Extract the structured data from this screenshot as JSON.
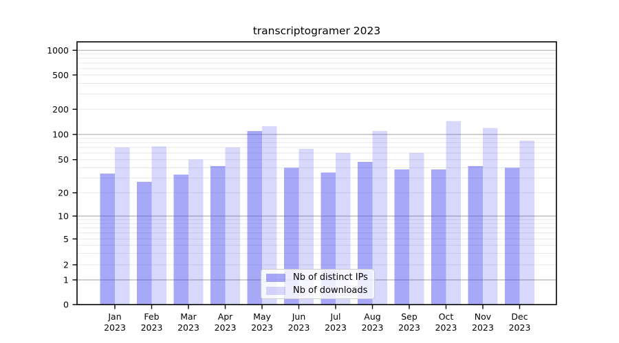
{
  "title": "transcriptogramer 2023",
  "chart_data": {
    "type": "bar",
    "title": "transcriptogramer 2023",
    "categories": [
      "Jan 2023",
      "Feb 2023",
      "Mar 2023",
      "Apr 2023",
      "May 2023",
      "Jun 2023",
      "Jul 2023",
      "Aug 2023",
      "Sep 2023",
      "Oct 2023",
      "Nov 2023",
      "Dec 2023"
    ],
    "series": [
      {
        "name": "Nb of distinct IPs",
        "color": "rgba(62,62,240,0.45)",
        "values": [
          34,
          27,
          33,
          42,
          110,
          40,
          35,
          47,
          38,
          38,
          42,
          40
        ]
      },
      {
        "name": "Nb of downloads",
        "color": "rgba(62,62,240,0.20)",
        "values": [
          70,
          72,
          50,
          70,
          125,
          67,
          60,
          110,
          60,
          145,
          120,
          84
        ]
      }
    ],
    "xlabel": "",
    "ylabel": "",
    "yscale": "symlog",
    "ylim": [
      0,
      1300
    ],
    "yticks": [
      0,
      1,
      2,
      5,
      10,
      20,
      50,
      100,
      200,
      500,
      1000
    ],
    "y_tick_labels": [
      "0",
      "1",
      "2",
      "5",
      "10",
      "20",
      "50",
      "100",
      "200",
      "500",
      "1000"
    ],
    "grid": true,
    "legend_position": "lower center"
  },
  "colors": {
    "ips_bar": "rgba(62,62,240,0.45)",
    "downloads_bar": "rgba(62,62,240,0.20)",
    "major_grid": "#b2b2b2",
    "minor_grid": "#e8e8e8",
    "spine": "#000000",
    "background": "#ffffff"
  }
}
